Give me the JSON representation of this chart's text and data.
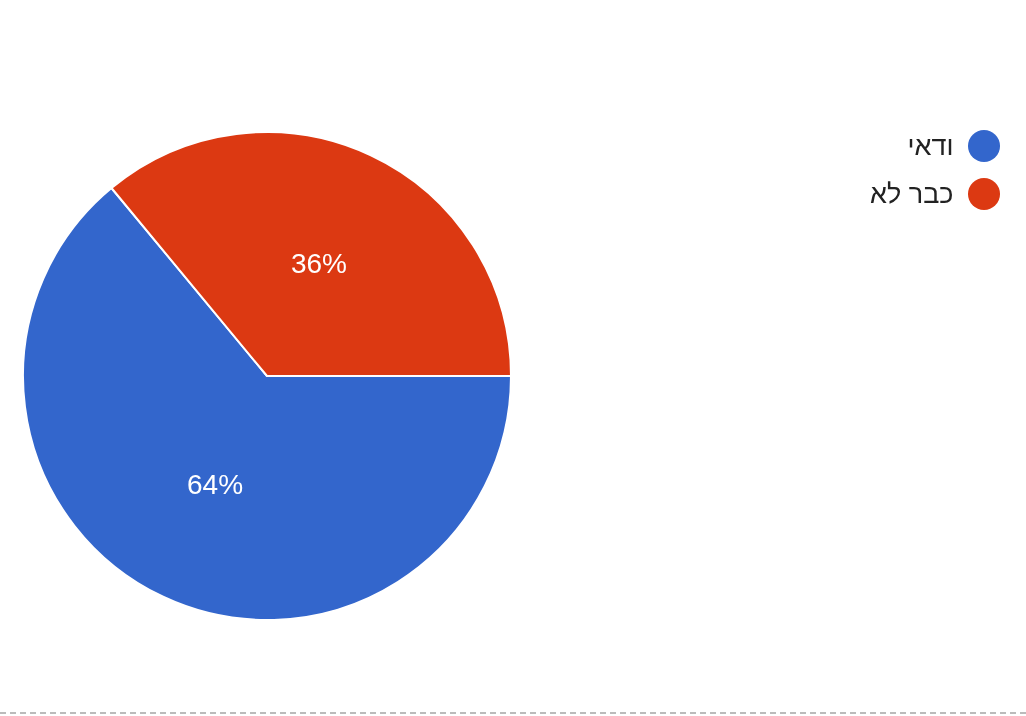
{
  "chart_data": {
    "type": "pie",
    "categories": [
      "ודאי",
      "כבר לא"
    ],
    "values": [
      64,
      36
    ],
    "colors": [
      "#3366cc",
      "#dc3912"
    ],
    "legend": "top right",
    "value_labels": [
      "64%",
      "36%"
    ]
  }
}
